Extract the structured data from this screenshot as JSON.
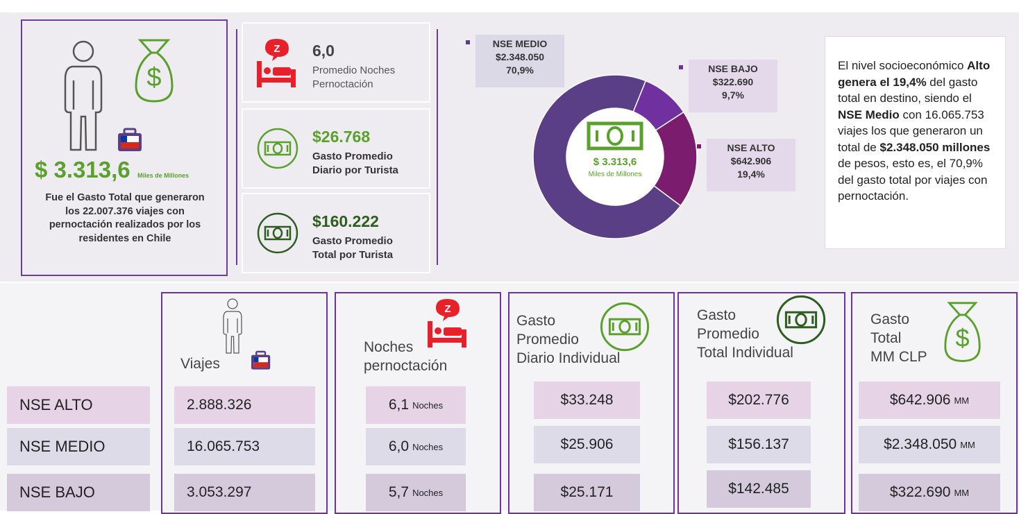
{
  "summary": {
    "amount": "$ 3.313,6",
    "unit": "Miles de Millones",
    "description": [
      "Fue el Gasto Total que generaron",
      "los 22.007.376 viajes con",
      "pernoctación realizados por los",
      "residentes en Chile"
    ]
  },
  "stats": [
    {
      "value": "6,0",
      "label": [
        "Promedio Noches",
        "Pernoctación"
      ]
    },
    {
      "value": "$26.768",
      "label": [
        "Gasto Promedio",
        "Diario por Turista"
      ]
    },
    {
      "value": "$160.222",
      "label": [
        "Gasto Promedio",
        "Total por Turista"
      ]
    }
  ],
  "chart_data": {
    "type": "donut",
    "center_value": "$ 3.313,6",
    "center_unit": "Miles de Millones",
    "categories": [
      "NSE BAJO",
      "NSE ALTO",
      "NSE MEDIO"
    ],
    "amounts": [
      "$322.690",
      "$642.906",
      "$2.348.050"
    ],
    "values": [
      9.7,
      19.4,
      70.9
    ],
    "value_labels": [
      "9,7%",
      "19,4%",
      "70,9%"
    ],
    "colors": [
      "#7030a0",
      "#7b1c6f",
      "#5a3f86"
    ]
  },
  "note": [
    {
      "text": "El nivel socioeconómico ",
      "bold": false
    },
    {
      "text": "Alto genera el 19,4%",
      "bold": true
    },
    {
      "text": " del gasto total en destino, siendo el ",
      "bold": false
    },
    {
      "text": "NSE Medio",
      "bold": true
    },
    {
      "text": " con 16.065.753 viajes los que generaron un total de ",
      "bold": false
    },
    {
      "text": "$2.348.050 millones",
      "bold": true
    },
    {
      "text": " de pesos, esto es, el 70,9% del gasto total por viajes con pernoctación.",
      "bold": false
    }
  ],
  "table": {
    "row_labels": [
      "NSE ALTO",
      "NSE MEDIO",
      "NSE BAJO"
    ],
    "columns": [
      {
        "header": [
          "Viajes"
        ],
        "cells": [
          "2.888.326",
          "16.065.753",
          "3.053.297"
        ]
      },
      {
        "header": [
          "Noches",
          "pernoctación"
        ],
        "unit": "Noches",
        "cells": [
          "6,1",
          "6,0",
          "5,7"
        ]
      },
      {
        "header": [
          "Gasto",
          "Promedio",
          "Diario Individual"
        ],
        "cells": [
          "$33.248",
          "$25.906",
          "$25.171"
        ]
      },
      {
        "header": [
          "Gasto",
          "Promedio",
          "Total Individual"
        ],
        "cells": [
          "$202.776",
          "$156.137",
          "$142.485"
        ]
      },
      {
        "header": [
          "Gasto",
          "Total",
          "MM CLP"
        ],
        "unit": "MM",
        "cells": [
          "$642.906",
          "$2.348.050",
          "$322.690"
        ]
      }
    ]
  }
}
